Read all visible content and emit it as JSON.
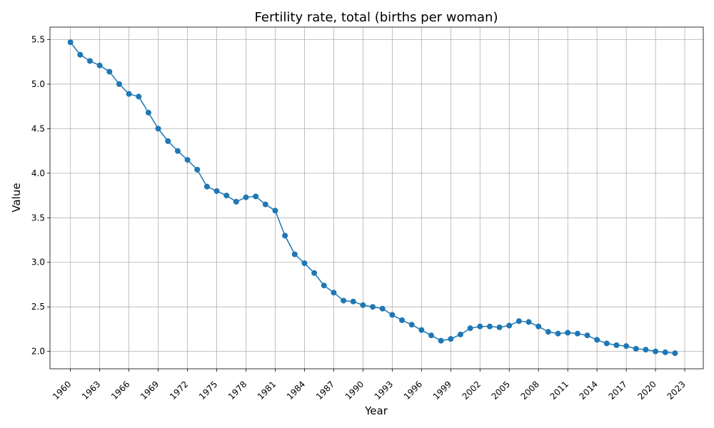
{
  "chart_data": {
    "type": "line",
    "title": "Fertility rate, total (births per woman)",
    "xlabel": "Year",
    "ylabel": "Value",
    "xlim": [
      1957.9,
      2024.9
    ],
    "ylim": [
      1.805,
      5.64
    ],
    "grid": true,
    "line_color": "#1f77b4",
    "x_ticks": [
      1960,
      1963,
      1966,
      1969,
      1972,
      1975,
      1978,
      1981,
      1984,
      1987,
      1990,
      1993,
      1996,
      1999,
      2002,
      2005,
      2008,
      2011,
      2014,
      2017,
      2020,
      2023
    ],
    "y_ticks": [
      2.0,
      2.5,
      3.0,
      3.5,
      4.0,
      4.5,
      5.0,
      5.5
    ],
    "y_tick_labels": [
      "2.0",
      "2.5",
      "3.0",
      "3.5",
      "4.0",
      "4.5",
      "5.0",
      "5.5"
    ],
    "x": [
      1960,
      1961,
      1962,
      1963,
      1964,
      1965,
      1966,
      1967,
      1968,
      1969,
      1970,
      1971,
      1972,
      1973,
      1974,
      1975,
      1976,
      1977,
      1978,
      1979,
      1980,
      1981,
      1982,
      1983,
      1984,
      1985,
      1986,
      1987,
      1988,
      1989,
      1990,
      1991,
      1992,
      1993,
      1994,
      1995,
      1996,
      1997,
      1998,
      1999,
      2000,
      2001,
      2002,
      2003,
      2004,
      2005,
      2006,
      2007,
      2008,
      2009,
      2010,
      2011,
      2012,
      2013,
      2014,
      2015,
      2016,
      2017,
      2018,
      2019,
      2020,
      2021,
      2022
    ],
    "values": [
      5.47,
      5.33,
      5.26,
      5.21,
      5.14,
      5.0,
      4.89,
      4.86,
      4.68,
      4.5,
      4.36,
      4.25,
      4.15,
      4.04,
      3.85,
      3.8,
      3.75,
      3.68,
      3.73,
      3.74,
      3.65,
      3.58,
      3.3,
      3.09,
      2.99,
      2.88,
      2.74,
      2.66,
      2.57,
      2.56,
      2.52,
      2.5,
      2.48,
      2.41,
      2.35,
      2.3,
      2.24,
      2.18,
      2.12,
      2.14,
      2.19,
      2.26,
      2.28,
      2.28,
      2.27,
      2.29,
      2.34,
      2.33,
      2.28,
      2.22,
      2.2,
      2.21,
      2.2,
      2.18,
      2.13,
      2.09,
      2.07,
      2.06,
      2.03,
      2.02,
      2.0,
      1.99,
      1.98
    ]
  }
}
